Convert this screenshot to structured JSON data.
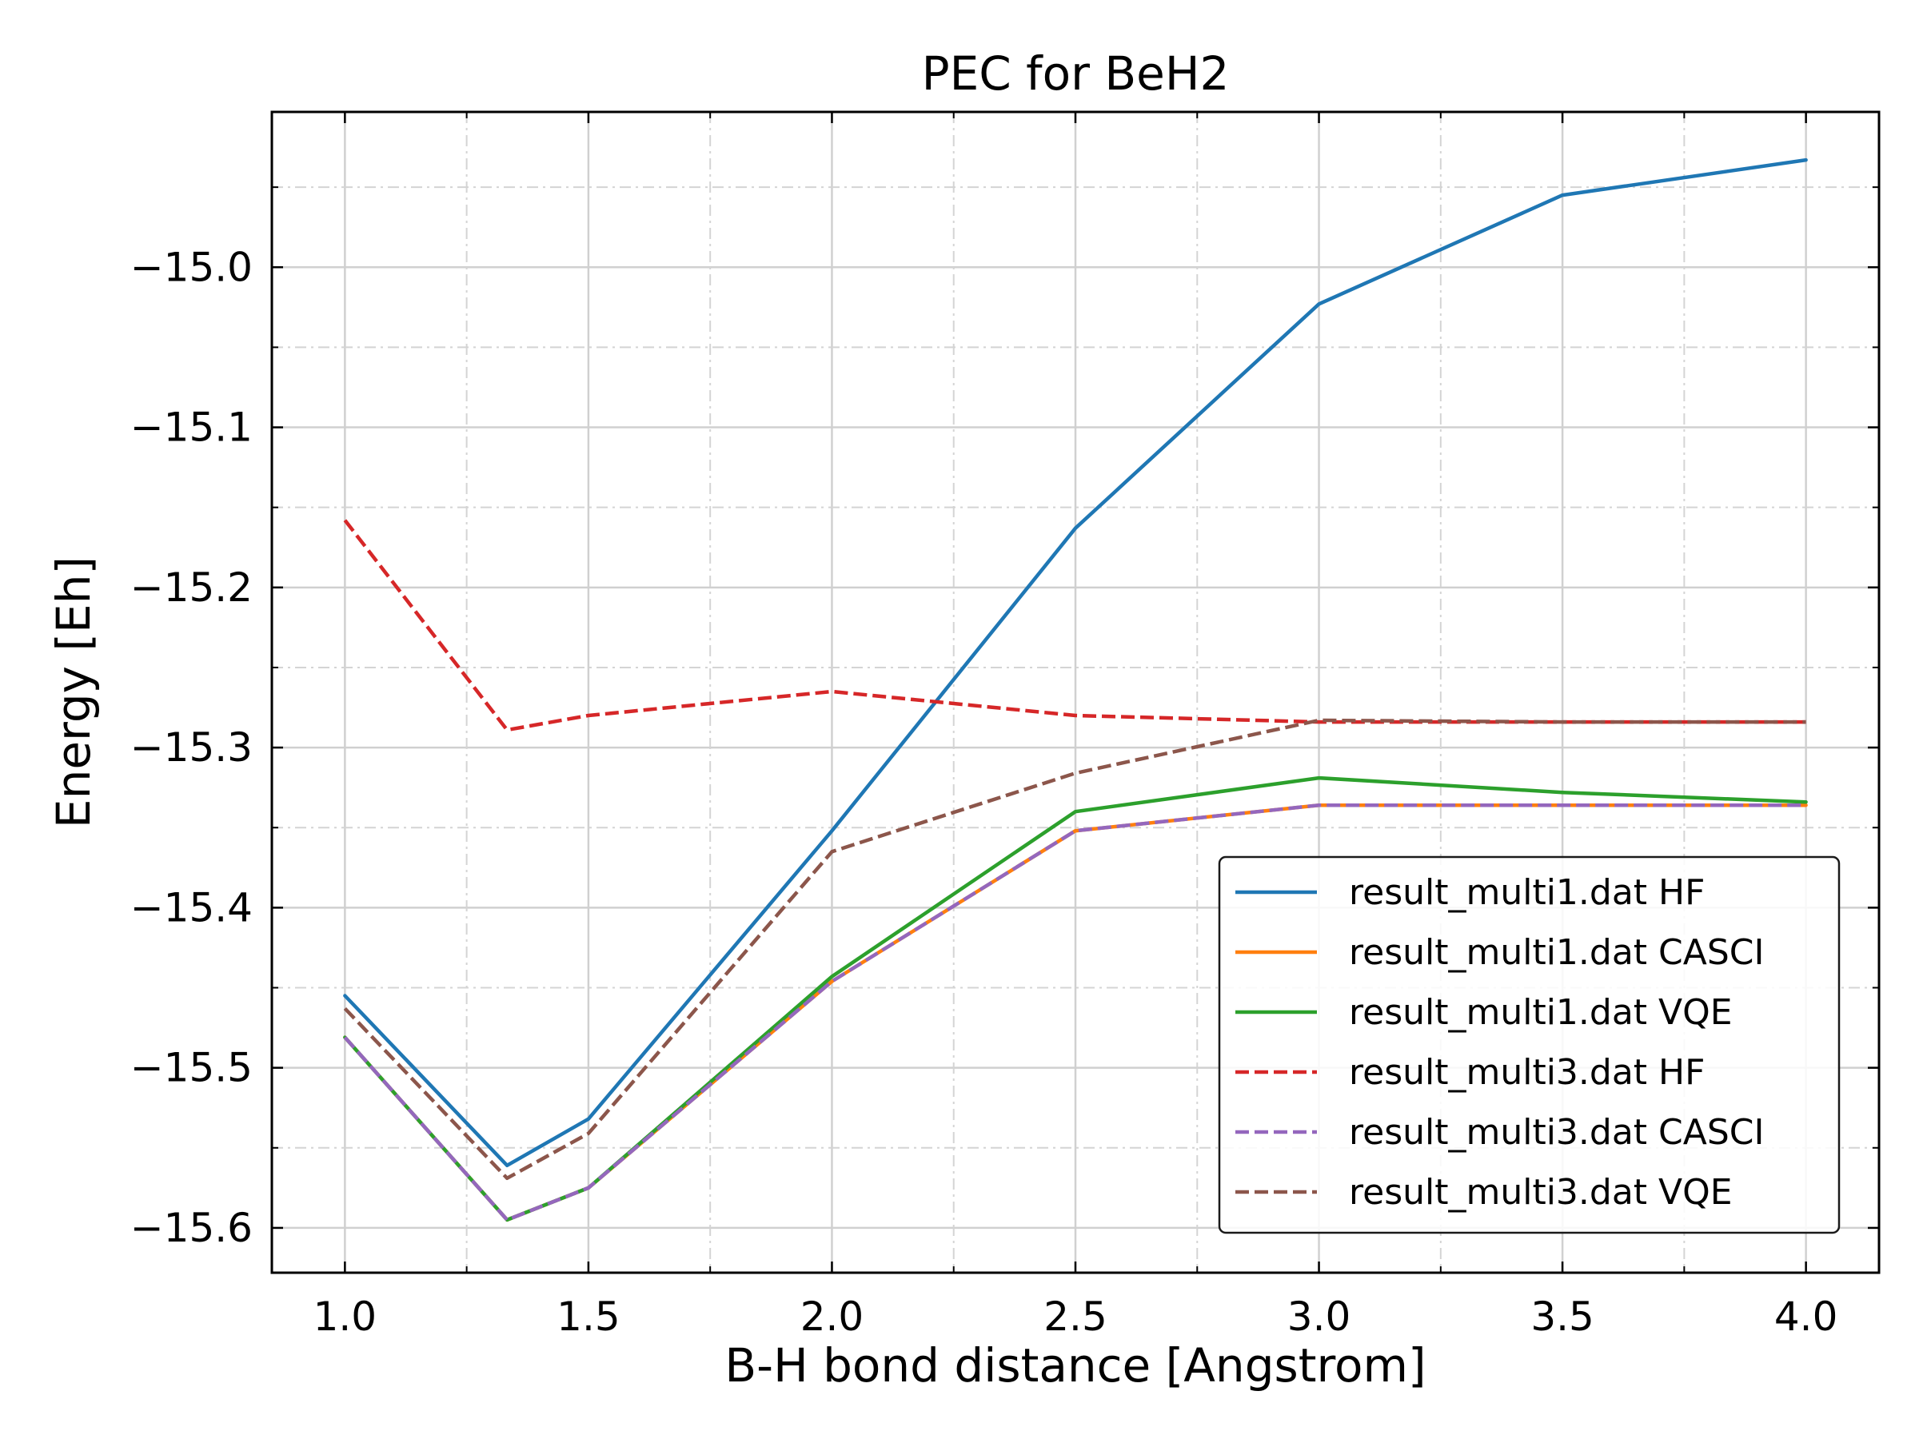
{
  "chart_data": {
    "type": "line",
    "title": "PEC for BeH2",
    "xlabel": "B-H bond distance [Angstrom]",
    "ylabel": "Energy [Eh]",
    "xlim": [
      0.85,
      4.15
    ],
    "ylim": [
      -15.628,
      -14.903
    ],
    "xticks": [
      1.0,
      1.5,
      2.0,
      2.5,
      3.0,
      3.5,
      4.0
    ],
    "xtick_labels": [
      "1.0",
      "1.5",
      "2.0",
      "2.5",
      "3.0",
      "3.5",
      "4.0"
    ],
    "xminor_ticks": [
      1.25,
      1.75,
      2.25,
      2.75,
      3.25,
      3.75
    ],
    "yticks": [
      -15.6,
      -15.5,
      -15.4,
      -15.3,
      -15.2,
      -15.1,
      -15.0
    ],
    "ytick_labels": [
      "−15.6",
      "−15.5",
      "−15.4",
      "−15.3",
      "−15.2",
      "−15.1",
      "−15.0"
    ],
    "yminor_ticks": [
      -15.55,
      -15.45,
      -15.35,
      -15.25,
      -15.15,
      -15.05,
      -14.95
    ],
    "grid": true,
    "legend_position": "lower-right",
    "x": [
      1.0,
      1.333,
      1.5,
      2.0,
      2.5,
      3.0,
      3.5,
      4.0
    ],
    "series": [
      {
        "name": "result_multi1.dat HF",
        "color": "#1f77b4",
        "dashed": false,
        "values": [
          -15.455,
          -15.561,
          -15.532,
          -15.352,
          -15.163,
          -15.023,
          -14.955,
          -14.933
        ]
      },
      {
        "name": "result_multi1.dat CASCI",
        "color": "#ff7f0e",
        "dashed": false,
        "values": [
          -15.481,
          -15.595,
          -15.575,
          -15.446,
          -15.352,
          -15.336,
          -15.336,
          -15.336
        ]
      },
      {
        "name": "result_multi1.dat VQE",
        "color": "#2ca02c",
        "dashed": false,
        "values": [
          -15.481,
          -15.595,
          -15.575,
          -15.443,
          -15.34,
          -15.319,
          -15.328,
          -15.334
        ]
      },
      {
        "name": "result_multi3.dat HF",
        "color": "#d62728",
        "dashed": true,
        "values": [
          -15.158,
          -15.289,
          -15.28,
          -15.265,
          -15.28,
          -15.284,
          -15.284,
          -15.284
        ]
      },
      {
        "name": "result_multi3.dat CASCI",
        "color": "#9467bd",
        "dashed": true,
        "values": [
          -15.481,
          -15.595,
          -15.575,
          -15.446,
          -15.352,
          -15.336,
          -15.336,
          -15.336
        ]
      },
      {
        "name": "result_multi3.dat VQE",
        "color": "#8c564b",
        "dashed": true,
        "values": [
          -15.463,
          -15.569,
          -15.541,
          -15.365,
          -15.316,
          -15.283,
          -15.284,
          -15.284
        ]
      }
    ]
  }
}
